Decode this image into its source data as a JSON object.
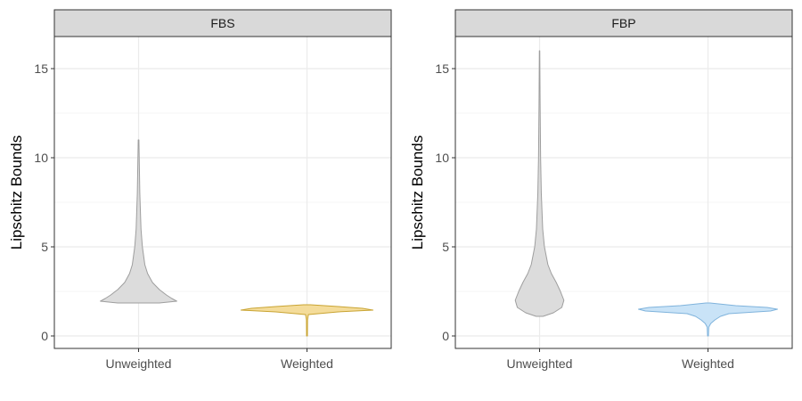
{
  "chart_data": [
    {
      "type": "violin",
      "facet": "FBS",
      "ylabel": "Lipschitz Bounds",
      "xlabel": "",
      "ylim": [
        -0.7,
        16.8
      ],
      "yticks": [
        0,
        5,
        10,
        15
      ],
      "categories": [
        "Unweighted",
        "Weighted"
      ],
      "grid": true,
      "series": [
        {
          "category": "Unweighted",
          "fill": "#dcdcdc",
          "stroke": "#9e9e9e",
          "min": 1.85,
          "max": 11.0,
          "profile": [
            [
              1.85,
              0.3
            ],
            [
              1.95,
              0.55
            ],
            [
              2.1,
              0.48
            ],
            [
              2.3,
              0.4
            ],
            [
              2.6,
              0.3
            ],
            [
              3.0,
              0.2
            ],
            [
              3.5,
              0.13
            ],
            [
              4.0,
              0.09
            ],
            [
              5.0,
              0.055
            ],
            [
              6.0,
              0.035
            ],
            [
              8.0,
              0.018
            ],
            [
              11.0,
              0.005
            ]
          ]
        },
        {
          "category": "Weighted",
          "fill": "#f4dc9a",
          "stroke": "#c9a432",
          "min": 0.0,
          "max": 1.75,
          "profile": [
            [
              0.0,
              0.006
            ],
            [
              0.9,
              0.008
            ],
            [
              1.2,
              0.02
            ],
            [
              1.35,
              0.45
            ],
            [
              1.45,
              0.95
            ],
            [
              1.55,
              0.8
            ],
            [
              1.65,
              0.45
            ],
            [
              1.75,
              0.05
            ]
          ]
        }
      ]
    },
    {
      "type": "violin",
      "facet": "FBP",
      "ylabel": "Lipschitz Bounds",
      "xlabel": "",
      "ylim": [
        -0.7,
        16.8
      ],
      "yticks": [
        0,
        5,
        10,
        15
      ],
      "categories": [
        "Unweighted",
        "Weighted"
      ],
      "grid": true,
      "series": [
        {
          "category": "Unweighted",
          "fill": "#dcdcdc",
          "stroke": "#9e9e9e",
          "min": 1.1,
          "max": 16.0,
          "profile": [
            [
              1.1,
              0.05
            ],
            [
              1.3,
              0.2
            ],
            [
              1.6,
              0.32
            ],
            [
              2.0,
              0.35
            ],
            [
              2.5,
              0.3
            ],
            [
              3.0,
              0.24
            ],
            [
              3.5,
              0.17
            ],
            [
              4.0,
              0.12
            ],
            [
              5.0,
              0.07
            ],
            [
              6.0,
              0.045
            ],
            [
              8.0,
              0.025
            ],
            [
              10.0,
              0.015
            ],
            [
              13.0,
              0.008
            ],
            [
              16.0,
              0.003
            ]
          ]
        },
        {
          "category": "Weighted",
          "fill": "#c9e3f7",
          "stroke": "#7fb3dc",
          "min": 0.0,
          "max": 1.85,
          "profile": [
            [
              0.0,
              0.006
            ],
            [
              0.5,
              0.012
            ],
            [
              0.7,
              0.04
            ],
            [
              0.9,
              0.1
            ],
            [
              1.1,
              0.18
            ],
            [
              1.25,
              0.3
            ],
            [
              1.4,
              0.9
            ],
            [
              1.5,
              1.0
            ],
            [
              1.6,
              0.85
            ],
            [
              1.7,
              0.4
            ],
            [
              1.85,
              0.03
            ]
          ]
        }
      ]
    }
  ]
}
